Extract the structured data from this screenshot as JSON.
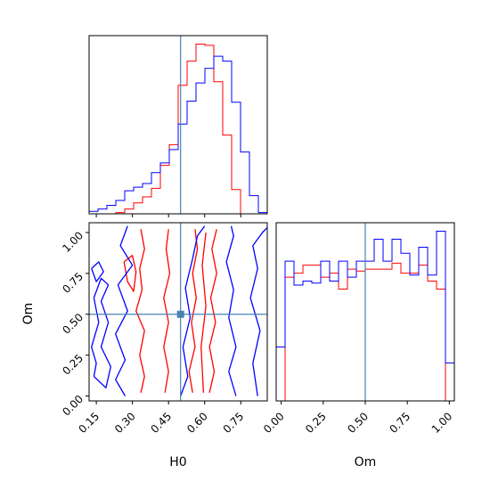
{
  "colors": {
    "series_a": "#ff0000",
    "series_b": "#0000ff",
    "truth": "#4682b4",
    "frame": "#000000",
    "background": "#ffffff"
  },
  "chart_data": [
    {
      "type": "histogram",
      "panel": "H0 marginal (top-left)",
      "xlim": [
        0.12,
        0.86
      ],
      "x_ticks": [
        "0.15",
        "0.30",
        "0.45",
        "0.60",
        "0.75"
      ],
      "x_tick_labels_shown": false,
      "y_ticks_shown": false,
      "truth_value": 0.5,
      "bin_edges": [
        0.12,
        0.157,
        0.194,
        0.231,
        0.268,
        0.305,
        0.342,
        0.379,
        0.416,
        0.453,
        0.49,
        0.527,
        0.564,
        0.601,
        0.638,
        0.675,
        0.712,
        0.749,
        0.786,
        0.823,
        0.86
      ],
      "series": [
        {
          "color": "red",
          "counts": [
            0,
            0,
            0,
            1,
            4,
            9,
            14,
            21,
            40,
            57,
            106,
            126,
            140,
            139,
            109,
            65,
            20,
            0,
            0,
            0
          ]
        },
        {
          "color": "blue",
          "counts": [
            2,
            4,
            7,
            11,
            19,
            22,
            25,
            34,
            42,
            53,
            74,
            93,
            108,
            120,
            130,
            126,
            92,
            51,
            15,
            1
          ]
        }
      ]
    },
    {
      "type": "contour",
      "panel": "H0 vs Om (bottom-left)",
      "xlabel": "H0",
      "ylabel": "Om",
      "xlim": [
        0.12,
        0.86
      ],
      "ylim": [
        -0.03,
        1.06
      ],
      "x_ticks": [
        "0.15",
        "0.30",
        "0.45",
        "0.60",
        "0.75"
      ],
      "y_ticks": [
        "0.00",
        "0.25",
        "0.50",
        "0.75",
        "1.00"
      ],
      "truth_point": [
        0.5,
        0.5
      ],
      "series": [
        {
          "color": "red",
          "contours": [
            [
              [
                0.335,
                1.02
              ],
              [
                0.35,
                0.9
              ],
              [
                0.33,
                0.78
              ],
              [
                0.34,
                0.65
              ],
              [
                0.315,
                0.52
              ],
              [
                0.35,
                0.4
              ],
              [
                0.33,
                0.25
              ],
              [
                0.35,
                0.12
              ],
              [
                0.335,
                0.02
              ]
            ],
            [
              [
                0.45,
                1.02
              ],
              [
                0.44,
                0.9
              ],
              [
                0.455,
                0.75
              ],
              [
                0.43,
                0.6
              ],
              [
                0.45,
                0.45
              ],
              [
                0.43,
                0.3
              ],
              [
                0.45,
                0.15
              ],
              [
                0.435,
                0.02
              ]
            ],
            [
              [
                0.55,
                0.02
              ],
              [
                0.535,
                0.15
              ],
              [
                0.56,
                0.3
              ],
              [
                0.545,
                0.45
              ],
              [
                0.565,
                0.6
              ],
              [
                0.55,
                0.75
              ],
              [
                0.57,
                0.9
              ],
              [
                0.56,
                1.02
              ]
            ],
            [
              [
                0.62,
                0.02
              ],
              [
                0.64,
                0.15
              ],
              [
                0.62,
                0.3
              ],
              [
                0.645,
                0.45
              ],
              [
                0.625,
                0.6
              ],
              [
                0.65,
                0.75
              ],
              [
                0.63,
                0.9
              ],
              [
                0.65,
                1.02
              ]
            ],
            [
              [
                0.595,
                0.02
              ],
              [
                0.585,
                0.3
              ],
              [
                0.605,
                0.55
              ],
              [
                0.59,
                0.8
              ],
              [
                0.605,
                1.0
              ]
            ],
            [
              [
                0.265,
                0.82
              ],
              [
                0.3,
                0.86
              ],
              [
                0.315,
                0.76
              ],
              [
                0.305,
                0.64
              ],
              [
                0.28,
                0.7
              ],
              [
                0.265,
                0.82
              ]
            ]
          ]
        },
        {
          "color": "blue",
          "contours": [
            [
              [
                0.28,
                1.04
              ],
              [
                0.25,
                0.92
              ],
              [
                0.3,
                0.8
              ],
              [
                0.24,
                0.68
              ],
              [
                0.28,
                0.52
              ],
              [
                0.23,
                0.38
              ],
              [
                0.27,
                0.22
              ],
              [
                0.23,
                0.1
              ],
              [
                0.27,
                0.0
              ]
            ],
            [
              [
                0.13,
                0.78
              ],
              [
                0.16,
                0.82
              ],
              [
                0.18,
                0.76
              ],
              [
                0.15,
                0.7
              ],
              [
                0.13,
                0.78
              ]
            ],
            [
              [
                0.14,
                0.12
              ],
              [
                0.19,
                0.05
              ],
              [
                0.21,
                0.18
              ],
              [
                0.17,
                0.3
              ],
              [
                0.2,
                0.45
              ],
              [
                0.17,
                0.58
              ],
              [
                0.2,
                0.68
              ],
              [
                0.17,
                0.72
              ],
              [
                0.14,
                0.6
              ],
              [
                0.16,
                0.45
              ],
              [
                0.13,
                0.3
              ],
              [
                0.15,
                0.2
              ],
              [
                0.14,
                0.12
              ]
            ],
            [
              [
                0.5,
                0.0
              ],
              [
                0.53,
                0.12
              ],
              [
                0.51,
                0.3
              ],
              [
                0.54,
                0.48
              ],
              [
                0.52,
                0.66
              ],
              [
                0.55,
                0.84
              ],
              [
                0.57,
                0.98
              ],
              [
                0.6,
                1.04
              ]
            ],
            [
              [
                0.73,
                0.0
              ],
              [
                0.7,
                0.15
              ],
              [
                0.73,
                0.3
              ],
              [
                0.7,
                0.48
              ],
              [
                0.72,
                0.65
              ],
              [
                0.69,
                0.82
              ],
              [
                0.72,
                0.98
              ],
              [
                0.71,
                1.04
              ]
            ],
            [
              [
                0.82,
                0.0
              ],
              [
                0.8,
                0.2
              ],
              [
                0.83,
                0.4
              ],
              [
                0.79,
                0.6
              ],
              [
                0.82,
                0.78
              ],
              [
                0.8,
                0.92
              ],
              [
                0.84,
                1.0
              ],
              [
                0.86,
                1.03
              ]
            ]
          ]
        }
      ]
    },
    {
      "type": "histogram",
      "panel": "Om marginal (bottom-right)",
      "xlabel": "Om",
      "xlim": [
        -0.03,
        1.03
      ],
      "x_ticks": [
        "0.00",
        "0.25",
        "0.50",
        "0.75",
        "1.00"
      ],
      "y_ticks_shown": false,
      "truth_value": 0.5,
      "bin_edges": [
        -0.03,
        0.023,
        0.076,
        0.129,
        0.182,
        0.235,
        0.288,
        0.341,
        0.394,
        0.447,
        0.5,
        0.553,
        0.606,
        0.659,
        0.712,
        0.765,
        0.818,
        0.871,
        0.924,
        0.977,
        1.03
      ],
      "series": [
        {
          "color": "red",
          "counts": [
            0,
            62,
            64,
            68,
            68,
            62,
            64,
            56,
            66,
            65,
            66,
            66,
            66,
            69,
            64,
            64,
            68,
            60,
            56,
            0
          ]
        },
        {
          "color": "blue",
          "counts": [
            27,
            70,
            58,
            60,
            59,
            70,
            60,
            70,
            62,
            70,
            70,
            81,
            70,
            81,
            74,
            63,
            77,
            63,
            85,
            19
          ]
        }
      ]
    }
  ]
}
